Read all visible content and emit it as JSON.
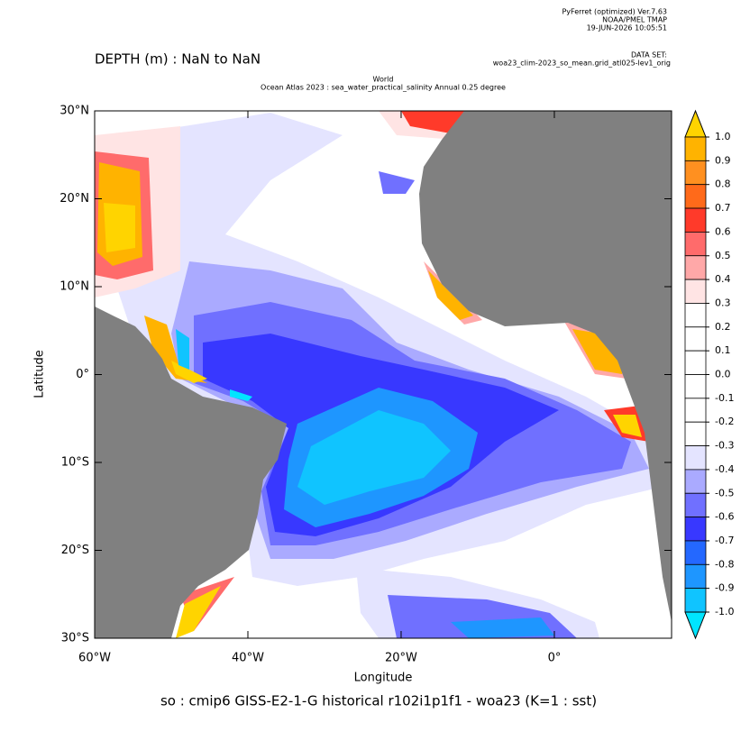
{
  "chart_data": {
    "type": "map",
    "header": [
      "PyFerret (optimized) Ver.7.63",
      "NOAA/PMEL TMAP",
      "19-JUN-2026 10:05:51"
    ],
    "dataset_label": "DATA SET:",
    "dataset": "woa23_clim-2023_so_mean.grid_atl025-lev1_orig",
    "depth": "DEPTH (m) : NaN to NaN",
    "title": [
      "World",
      "Ocean Atlas 2023 : sea_water_practical_salinity Annual  0.25 degree"
    ],
    "x_label": "Longitude",
    "y_label": "Latitude",
    "caption": "so : cmip6 GISS-E2-1-G historical r102i1p1f1 - woa23  (K=1 : sst)",
    "xlim": [
      -60,
      15.3
    ],
    "ylim": [
      -30,
      30
    ],
    "xticks": [
      {
        "value": -60,
        "label": "60°W"
      },
      {
        "value": -40,
        "label": "40°W"
      },
      {
        "value": -20,
        "label": "20°W"
      },
      {
        "value": 0,
        "label": "0°"
      }
    ],
    "yticks": [
      {
        "value": 30,
        "label": "30°N"
      },
      {
        "value": 20,
        "label": "20°N"
      },
      {
        "value": 10,
        "label": "10°N"
      },
      {
        "value": 0,
        "label": "0°"
      },
      {
        "value": -10,
        "label": "10°S"
      },
      {
        "value": -20,
        "label": "20°S"
      },
      {
        "value": -30,
        "label": "30°S"
      }
    ],
    "land_color": "#808080",
    "colorbar": {
      "levels": [
        {
          "value": 1,
          "label": "1.0"
        },
        0.9,
        0.8,
        0.7,
        0.6,
        0.5,
        0.4,
        0.3,
        0.2,
        0.1,
        {
          "value": 0,
          "label": "0.0"
        },
        -0.1,
        -0.2,
        -0.3,
        -0.4,
        -0.5,
        -0.6,
        -0.7,
        -0.8,
        -0.9,
        {
          "value": -1,
          "label": "-1.0"
        }
      ],
      "colors": [
        "#ffd400",
        "#ffb300",
        "#ff9020",
        "#ff6a1a",
        "#ff3a2a",
        "#ff6b6b",
        "#ffa8a8",
        "#ffe4e4",
        "#ffffff",
        "#ffffff",
        "#ffffff",
        "#ffffff",
        "#ffffff",
        "#ffffff",
        "#e4e4ff",
        "#aaaaff",
        "#7070ff",
        "#3838ff",
        "#2468ff",
        "#1e96ff",
        "#10c4ff",
        "#00e5ff"
      ]
    }
  }
}
